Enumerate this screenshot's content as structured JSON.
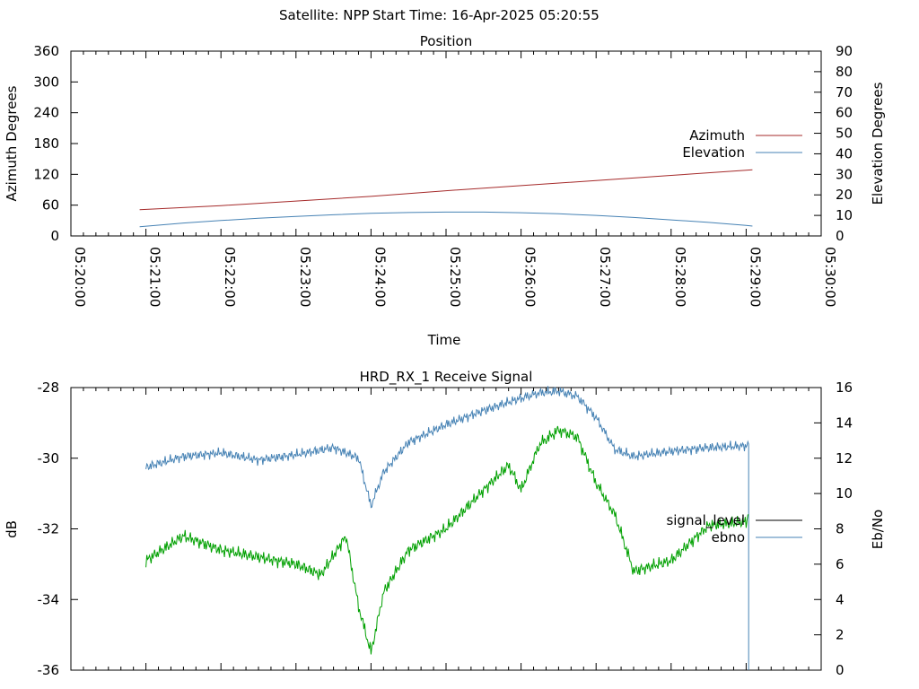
{
  "header": {
    "satellite": "Satellite: NPP",
    "start_time": "Start Time: 16-Apr-2025 05:20:55"
  },
  "chart_data": [
    {
      "type": "line",
      "title": "Position",
      "xlabel": "Time",
      "ylabel": "Azimuth Degrees",
      "y2label": "Elevation Degrees",
      "x_ticks": [
        "05:20:00",
        "05:21:00",
        "05:22:00",
        "05:23:00",
        "05:24:00",
        "05:25:00",
        "05:26:00",
        "05:27:00",
        "05:28:00",
        "05:29:00",
        "05:30:00"
      ],
      "xlim": [
        "05:20:00",
        "05:30:00"
      ],
      "ylim": [
        0,
        360
      ],
      "y_ticks": [
        "0",
        "60",
        "120",
        "180",
        "240",
        "300",
        "360"
      ],
      "y2lim": [
        0,
        90
      ],
      "y2_ticks": [
        "0",
        "10",
        "20",
        "30",
        "40",
        "50",
        "60",
        "70",
        "80",
        "90"
      ],
      "legend_position": "right",
      "series": [
        {
          "name": "Azimuth",
          "axis": "y",
          "color": "#a52a2a",
          "x": [
            "05:20:55",
            "05:22:00",
            "05:23:00",
            "05:24:00",
            "05:25:00",
            "05:26:00",
            "05:27:00",
            "05:28:00",
            "05:29:00",
            "05:29:05"
          ],
          "values": [
            51,
            59,
            68,
            77,
            88,
            98,
            108,
            118,
            128,
            129
          ]
        },
        {
          "name": "Elevation",
          "axis": "y2",
          "color": "#4682b4",
          "x": [
            "05:20:55",
            "05:21:30",
            "05:22:00",
            "05:22:30",
            "05:23:00",
            "05:23:30",
            "05:24:00",
            "05:24:30",
            "05:25:00",
            "05:25:30",
            "05:26:00",
            "05:26:30",
            "05:27:00",
            "05:27:30",
            "05:28:00",
            "05:28:30",
            "05:29:00",
            "05:29:05"
          ],
          "values": [
            4.5,
            6.3,
            7.5,
            8.6,
            9.5,
            10.3,
            11.0,
            11.4,
            11.6,
            11.6,
            11.3,
            10.8,
            10.0,
            9.0,
            7.8,
            6.6,
            5.1,
            4.8
          ]
        }
      ]
    },
    {
      "type": "line",
      "title": "HRD_RX_1 Receive Signal",
      "xlabel": "",
      "ylabel": "dB",
      "y2label": "Eb/No",
      "xlim": [
        "05:20:00",
        "05:30:00"
      ],
      "ylim": [
        -36,
        -28
      ],
      "y_ticks": [
        "-36",
        "-34",
        "-32",
        "-30",
        "-28"
      ],
      "y2lim": [
        0,
        16
      ],
      "y2_ticks": [
        "0",
        "2",
        "4",
        "6",
        "8",
        "10",
        "12",
        "14",
        "16"
      ],
      "legend_position": "right",
      "series": [
        {
          "name": "signal_level",
          "axis": "y",
          "color": "#000000",
          "x": [],
          "values": []
        },
        {
          "name": "ebno",
          "axis": "y2",
          "color": "#4682b4",
          "x": [
            "05:21:00",
            "05:21:30",
            "05:22:00",
            "05:22:30",
            "05:23:00",
            "05:23:30",
            "05:23:50",
            "05:24:00",
            "05:24:10",
            "05:24:30",
            "05:25:00",
            "05:25:30",
            "05:26:00",
            "05:26:15",
            "05:26:30",
            "05:26:45",
            "05:27:00",
            "05:27:15",
            "05:27:30",
            "05:28:00",
            "05:28:30",
            "05:29:00",
            "05:29:02"
          ],
          "values": [
            11.5,
            12.1,
            12.3,
            11.9,
            12.2,
            12.6,
            12.0,
            9.3,
            11.2,
            12.9,
            13.9,
            14.7,
            15.4,
            15.7,
            15.8,
            15.5,
            14.3,
            12.5,
            12.1,
            12.4,
            12.6,
            12.7,
            12.8
          ]
        },
        {
          "name": "",
          "axis": "y",
          "color": "#00a000",
          "x": [
            "05:21:00",
            "05:21:30",
            "05:22:00",
            "05:22:30",
            "05:23:00",
            "05:23:20",
            "05:23:40",
            "05:23:50",
            "05:24:00",
            "05:24:10",
            "05:24:30",
            "05:25:00",
            "05:25:30",
            "05:25:50",
            "05:26:00",
            "05:26:15",
            "05:26:30",
            "05:26:45",
            "05:27:00",
            "05:27:15",
            "05:27:30",
            "05:28:00",
            "05:28:30",
            "05:29:00",
            "05:29:02"
          ],
          "values": [
            -32.9,
            -32.2,
            -32.6,
            -32.8,
            -33.0,
            -33.3,
            -32.2,
            -34.2,
            -35.5,
            -33.8,
            -32.6,
            -32.0,
            -30.9,
            -30.2,
            -30.9,
            -29.6,
            -29.2,
            -29.4,
            -30.7,
            -31.6,
            -33.2,
            -32.9,
            -31.9,
            -31.8,
            -31.6
          ]
        }
      ]
    }
  ]
}
